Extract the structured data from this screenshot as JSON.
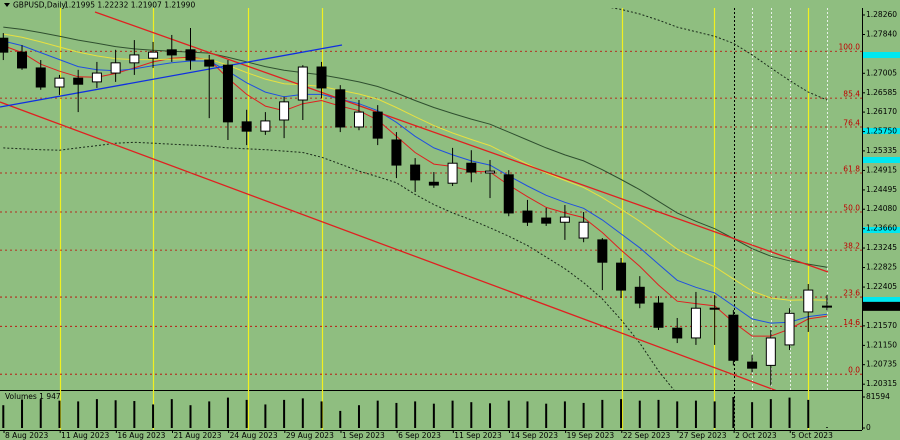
{
  "chart_data": {
    "type": "candlestick",
    "title": "GBPUSD,Daily",
    "ohlc_text": "1.21995 1.22232 1.21907 1.21990",
    "categories": [
      null,
      "8 Aug 2023",
      null,
      null,
      "11 Aug 2023",
      null,
      null,
      "16 Aug 2023",
      null,
      null,
      "21 Aug 2023",
      null,
      null,
      "24 Aug 2023",
      null,
      null,
      "29 Aug 2023",
      null,
      null,
      "1 Sep 2023",
      null,
      null,
      "6 Sep 2023",
      null,
      null,
      "11 Sep 2023",
      null,
      null,
      "14 Sep 2023",
      null,
      null,
      "19 Sep 2023",
      null,
      null,
      "22 Sep 2023",
      null,
      null,
      "27 Sep 2023",
      null,
      null,
      "2 Oct 2023",
      null,
      null,
      "5 Oct 2023",
      null
    ],
    "open": [
      1.2776,
      1.2746,
      1.2712,
      1.2671,
      1.269,
      1.2682,
      1.2701,
      1.2723,
      1.2733,
      1.2751,
      1.2751,
      1.2729,
      1.2718,
      1.2596,
      1.2576,
      1.26,
      1.2643,
      1.2714,
      1.2665,
      1.2585,
      1.2617,
      1.2557,
      1.2503,
      1.2466,
      1.2464,
      1.2507,
      1.2486,
      1.2482,
      1.2404,
      1.2389,
      1.238,
      1.2346,
      1.2342,
      1.2292,
      1.224,
      1.2206,
      1.2152,
      1.2131,
      1.2195,
      1.218,
      1.2079,
      1.2072,
      1.2116,
      1.2187,
      1.21995
    ],
    "high": [
      1.2787,
      1.2761,
      1.2729,
      1.2697,
      1.2708,
      1.2725,
      1.2751,
      1.2772,
      1.2768,
      1.2783,
      1.2798,
      1.274,
      1.2729,
      1.2622,
      1.2617,
      1.265,
      1.2718,
      1.2725,
      1.2675,
      1.2643,
      1.2632,
      1.2574,
      1.2518,
      1.2488,
      1.254,
      1.2535,
      1.2514,
      1.2492,
      1.2428,
      1.2411,
      1.2417,
      1.2402,
      1.2346,
      1.2303,
      1.2264,
      1.2221,
      1.2174,
      1.223,
      1.2223,
      1.2191,
      1.2094,
      1.2148,
      1.2195,
      1.2247,
      1.22232
    ],
    "low": [
      1.2729,
      1.2708,
      1.2665,
      1.2654,
      1.2617,
      1.2669,
      1.2682,
      1.2697,
      1.2712,
      1.2725,
      1.2708,
      1.2604,
      1.2557,
      1.2546,
      1.2568,
      1.2561,
      1.26,
      1.2647,
      1.2574,
      1.2578,
      1.2546,
      1.2475,
      1.2445,
      1.2454,
      1.2458,
      1.2466,
      1.2432,
      1.2393,
      1.2372,
      1.2372,
      1.2342,
      1.2337,
      1.2234,
      1.2217,
      1.2195,
      1.2148,
      1.212,
      1.2116,
      1.2116,
      1.2072,
      1.2057,
      1.2029,
      1.2105,
      1.2144,
      1.21907
    ],
    "close": [
      1.2746,
      1.2712,
      1.2671,
      1.269,
      1.2677,
      1.2701,
      1.2723,
      1.274,
      1.2746,
      1.274,
      1.2729,
      1.2716,
      1.2596,
      1.2576,
      1.2598,
      1.2639,
      1.2714,
      1.2669,
      1.2585,
      1.2617,
      1.2561,
      1.2503,
      1.2471,
      1.246,
      1.2507,
      1.2488,
      1.249,
      1.24,
      1.238,
      1.2378,
      1.2391,
      1.238,
      1.2294,
      1.2234,
      1.2206,
      1.2154,
      1.2131,
      1.2195,
      1.2193,
      1.2083,
      1.2066,
      1.2131,
      1.2184,
      1.2234,
      1.2199
    ],
    "up_color": "#ffffff",
    "down_color": "#000000",
    "ylim": [
      1.2019,
      1.2841
    ],
    "yticks": [
      {
        "value": 1.2826,
        "label": "1.28260"
      },
      {
        "value": 1.2784,
        "label": "1.27840"
      },
      {
        "value": 1.27005,
        "label": "1.27005"
      },
      {
        "value": 1.26585,
        "label": "1.26585"
      },
      {
        "value": 1.2617,
        "label": "1.26170"
      },
      {
        "value": 1.2575,
        "label": "1.25750"
      },
      {
        "value": 1.25335,
        "label": "1.25335"
      },
      {
        "value": 1.24915,
        "label": "1.24915"
      },
      {
        "value": 1.24495,
        "label": "1.24495"
      },
      {
        "value": 1.2408,
        "label": "1.24080"
      },
      {
        "value": 1.2366,
        "label": "1.23660"
      },
      {
        "value": 1.23245,
        "label": "1.23245"
      },
      {
        "value": 1.22825,
        "label": "1.22825"
      },
      {
        "value": 1.22405,
        "label": "1.22405"
      },
      {
        "value": 1.2157,
        "label": "1.21570"
      },
      {
        "value": 1.2115,
        "label": "1.21150"
      },
      {
        "value": 1.20735,
        "label": "1.20735"
      },
      {
        "value": 1.20315,
        "label": "1.20315"
      }
    ],
    "current_price": {
      "value": 1.2199,
      "label": "1.21990"
    },
    "overlays": [
      {
        "color": "#e02020",
        "dash": "none",
        "values": [
          1.276,
          1.2745,
          1.272,
          1.2705,
          1.2693,
          1.2692,
          1.27,
          1.2712,
          1.2725,
          1.2733,
          1.2735,
          1.273,
          1.269,
          1.2655,
          1.263,
          1.262,
          1.2635,
          1.2642,
          1.263,
          1.262,
          1.26,
          1.2565,
          1.253,
          1.2505,
          1.25,
          1.249,
          1.2488,
          1.246,
          1.2435,
          1.2412,
          1.24,
          1.239,
          1.2358,
          1.232,
          1.2285,
          1.2245,
          1.221,
          1.2205,
          1.22,
          1.2165,
          1.2135,
          1.2135,
          1.215,
          1.2172,
          1.2178
        ]
      },
      {
        "color": "#2050e0",
        "dash": "none",
        "values": [
          1.277,
          1.276,
          1.2745,
          1.273,
          1.2715,
          1.2708,
          1.2706,
          1.271,
          1.2717,
          1.2723,
          1.2727,
          1.2727,
          1.2705,
          1.268,
          1.266,
          1.265,
          1.2655,
          1.2655,
          1.2645,
          1.2635,
          1.262,
          1.2595,
          1.2565,
          1.254,
          1.2525,
          1.2512,
          1.2503,
          1.248,
          1.2458,
          1.2438,
          1.2423,
          1.241,
          1.2385,
          1.2355,
          1.2325,
          1.229,
          1.2255,
          1.224,
          1.2228,
          1.22,
          1.2172,
          1.2163,
          1.2165,
          1.2177,
          1.2182
        ]
      },
      {
        "color": "#e8e040",
        "dash": "none",
        "values": [
          1.2785,
          1.2778,
          1.2768,
          1.2757,
          1.2746,
          1.2738,
          1.2732,
          1.273,
          1.273,
          1.2731,
          1.2732,
          1.2731,
          1.2718,
          1.2702,
          1.2688,
          1.2678,
          1.2676,
          1.2672,
          1.2664,
          1.2656,
          1.2645,
          1.2627,
          1.2607,
          1.2588,
          1.2572,
          1.2558,
          1.2545,
          1.2525,
          1.2505,
          1.2486,
          1.247,
          1.2455,
          1.2433,
          1.2408,
          1.2382,
          1.2352,
          1.2322,
          1.2302,
          1.2284,
          1.2258,
          1.2232,
          1.2217,
          1.2212,
          1.2213,
          1.2212
        ]
      },
      {
        "color": "#2f4f2f",
        "dash": "none",
        "values": [
          1.28,
          1.2795,
          1.2788,
          1.278,
          1.2772,
          1.2765,
          1.2758,
          1.2753,
          1.275,
          1.2748,
          1.2746,
          1.2744,
          1.2735,
          1.2725,
          1.2715,
          1.2707,
          1.2702,
          1.2697,
          1.269,
          1.2682,
          1.2672,
          1.2658,
          1.2642,
          1.2627,
          1.2614,
          1.2602,
          1.2591,
          1.2574,
          1.2557,
          1.254,
          1.2525,
          1.2512,
          1.2493,
          1.2472,
          1.245,
          1.2425,
          1.24,
          1.2382,
          1.2366,
          1.2345,
          1.2323,
          1.2307,
          1.2297,
          1.229,
          1.2283
        ]
      },
      {
        "color": "#1a2a1a",
        "dash": "2 2",
        "values": [
          null,
          null,
          null,
          null,
          null,
          null,
          null,
          null,
          null,
          null,
          null,
          null,
          null,
          null,
          null,
          null,
          null,
          null,
          null,
          null,
          null,
          null,
          null,
          null,
          null,
          null,
          null,
          null,
          null,
          null,
          null,
          1.285,
          1.2845,
          1.2838,
          1.2828,
          1.2815,
          1.28,
          1.279,
          1.278,
          1.2765,
          1.274,
          1.2712,
          1.2685,
          1.266,
          1.2643
        ]
      },
      {
        "color": "#1a2a1a",
        "dash": "2 2",
        "values": [
          1.254,
          1.2538,
          1.2536,
          1.2535,
          1.254,
          1.2545,
          1.255,
          1.2552,
          1.255,
          1.2548,
          1.2546,
          1.2544,
          1.254,
          1.2538,
          1.2536,
          1.2533,
          1.253,
          1.252,
          1.2505,
          1.249,
          1.2478,
          1.2465,
          1.244,
          1.2418,
          1.24,
          1.2385,
          1.2368,
          1.235,
          1.233,
          1.2305,
          1.228,
          1.225,
          1.2215,
          1.217,
          1.212,
          1.206,
          1.201,
          null,
          null,
          null,
          null,
          null,
          null,
          null,
          null
        ]
      }
    ],
    "fib_levels": {
      "labels": [
        "100.0",
        "85.4",
        "76.4",
        "61.8",
        "50.0",
        "38.2",
        "23.6",
        "14.6",
        "0.0"
      ],
      "values": [
        1.2748,
        1.2647,
        1.2585,
        1.2486,
        1.2402,
        1.232,
        1.2219,
        1.2156,
        1.2053
      ],
      "color": "#c00000"
    },
    "volume": {
      "title": "Volumes 1 947",
      "color": "#000000",
      "values": [
        60000,
        75000,
        76000,
        72000,
        70000,
        76000,
        73000,
        71000,
        62000,
        76000,
        60000,
        70000,
        80000,
        74000,
        62000,
        74000,
        78000,
        70000,
        45000,
        60000,
        72000,
        66000,
        70000,
        64000,
        72000,
        68000,
        65000,
        72000,
        70000,
        64000,
        70000,
        66000,
        74000,
        76000,
        72000,
        74000,
        70000,
        72000,
        70000,
        81594,
        68000,
        76000,
        80000,
        74000,
        1947
      ],
      "ylim": [
        0,
        81594
      ],
      "yticks": [
        81594,
        0
      ]
    }
  }
}
